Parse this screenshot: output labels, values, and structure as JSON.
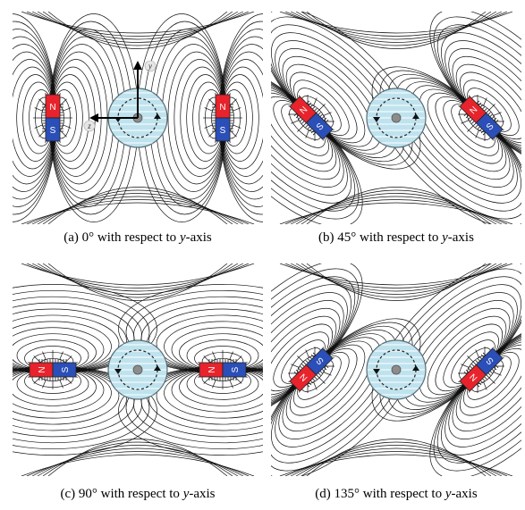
{
  "figure": {
    "panels": [
      {
        "id": "a",
        "caption_prefix": "(a) 0° with respect to ",
        "caption_var": "y",
        "caption_suffix": "-axis",
        "angle_deg": 0,
        "axis_labels": {
          "y": "y",
          "z": "z"
        }
      },
      {
        "id": "b",
        "caption_prefix": "(b) 45° with respect to ",
        "caption_var": "y",
        "caption_suffix": "-axis",
        "angle_deg": 45
      },
      {
        "id": "c",
        "caption_prefix": "(c) 90° with respect to ",
        "caption_var": "y",
        "caption_suffix": "-axis",
        "angle_deg": 90
      },
      {
        "id": "d",
        "caption_prefix": "(d) 135° with respect to ",
        "caption_var": "y",
        "caption_suffix": "-axis",
        "angle_deg": 135
      }
    ],
    "magnet_labels": {
      "north": "N",
      "south": "S"
    },
    "colors": {
      "north": "#e8232b",
      "south": "#2b4fb8",
      "sphere": "#bfe3ee",
      "field_line": "#111111",
      "center_dot": "#8c8c8c"
    }
  }
}
